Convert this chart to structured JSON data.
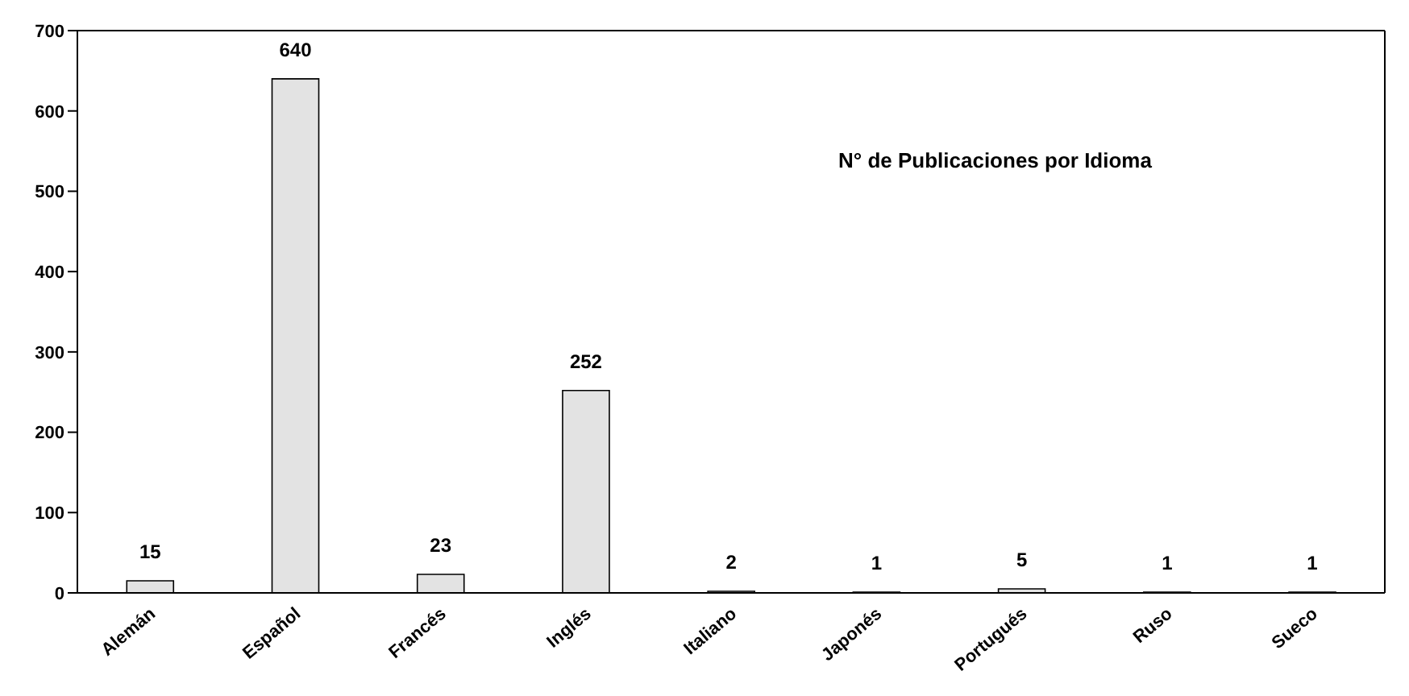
{
  "chart_data": {
    "type": "bar",
    "title": "N° de Publicaciones por Idioma",
    "categories": [
      "Alemán",
      "Español",
      "Francés",
      "Inglés",
      "Italiano",
      "Japonés",
      "Portugués",
      "Ruso",
      "Sueco"
    ],
    "values": [
      15,
      640,
      23,
      252,
      2,
      1,
      5,
      1,
      1
    ],
    "color": "#e3e3e3",
    "ylim": [
      0,
      700
    ],
    "yticks": [
      0,
      100,
      200,
      300,
      400,
      500,
      600,
      700
    ],
    "data_labels": true,
    "grid": false
  }
}
